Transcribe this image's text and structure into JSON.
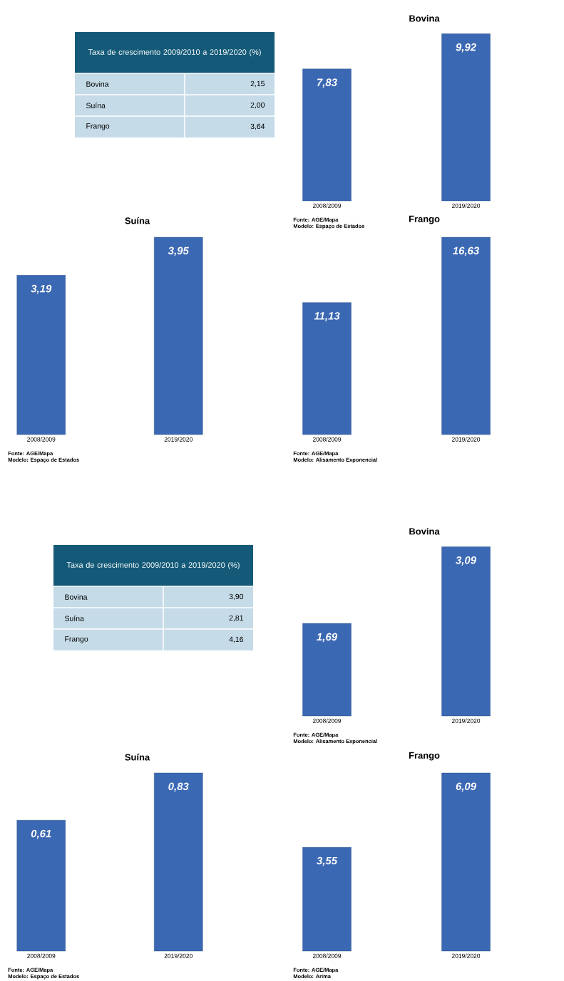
{
  "chart_data": [
    {
      "type": "other",
      "title": "Taxa de crescimento 2009/2010 a 2019/2020 (%)",
      "categories": [
        "Bovina",
        "Suína",
        "Frango"
      ],
      "value_labels": [
        "2,15",
        "2,00",
        "3,64"
      ]
    },
    {
      "type": "bar",
      "title": "Bovina",
      "categories": [
        "2008/2009",
        "2019/2020"
      ],
      "values": [
        7.83,
        9.92
      ],
      "value_labels": [
        "7,83",
        "9,92"
      ],
      "color": "#3b68b3",
      "annotations": [
        "Fonte: AGE/Mapa",
        "Modelo: Espaço de Estados"
      ]
    },
    {
      "type": "bar",
      "title": "Suína",
      "categories": [
        "2008/2009",
        "2019/2020"
      ],
      "values": [
        3.19,
        3.95
      ],
      "value_labels": [
        "3,19",
        "3,95"
      ],
      "color": "#3b68b3",
      "annotations": [
        "Fonte: AGE/Mapa",
        "Modelo: Espaço de Estados"
      ]
    },
    {
      "type": "bar",
      "title": "Frango",
      "categories": [
        "2008/2009",
        "2019/2020"
      ],
      "values": [
        11.13,
        16.63
      ],
      "value_labels": [
        "11,13",
        "16,63"
      ],
      "color": "#3b68b3",
      "annotations": [
        "Fonte: AGE/Mapa",
        "Modelo: Alisamento Exponencial"
      ]
    },
    {
      "type": "other",
      "title": "Taxa de crescimento 2009/2010 a 2019/2020 (%)",
      "categories": [
        "Bovina",
        "Suína",
        "Frango"
      ],
      "value_labels": [
        "3,90",
        "2,81",
        "4,16"
      ]
    },
    {
      "type": "bar",
      "title": "Bovina",
      "categories": [
        "2008/2009",
        "2019/2020"
      ],
      "values": [
        1.69,
        3.09
      ],
      "value_labels": [
        "1,69",
        "3,09"
      ],
      "color": "#3b68b3",
      "annotations": [
        "Fonte: AGE/Mapa",
        "Modelo: Alisamento Exponencial"
      ]
    },
    {
      "type": "bar",
      "title": "Suína",
      "categories": [
        "2008/2009",
        "2019/2020"
      ],
      "values": [
        0.61,
        0.83
      ],
      "value_labels": [
        "0,61",
        "0,83"
      ],
      "color": "#3b68b3",
      "annotations": [
        "Fonte: AGE/Mapa",
        "Modelo: Espaço de Estados"
      ]
    },
    {
      "type": "bar",
      "title": "Frango",
      "categories": [
        "2008/2009",
        "2019/2020"
      ],
      "values": [
        3.55,
        6.09
      ],
      "value_labels": [
        "3,55",
        "6,09"
      ],
      "color": "#3b68b3",
      "annotations": [
        "Fonte: AGE/Mapa",
        "Modelo: Arima"
      ]
    }
  ]
}
